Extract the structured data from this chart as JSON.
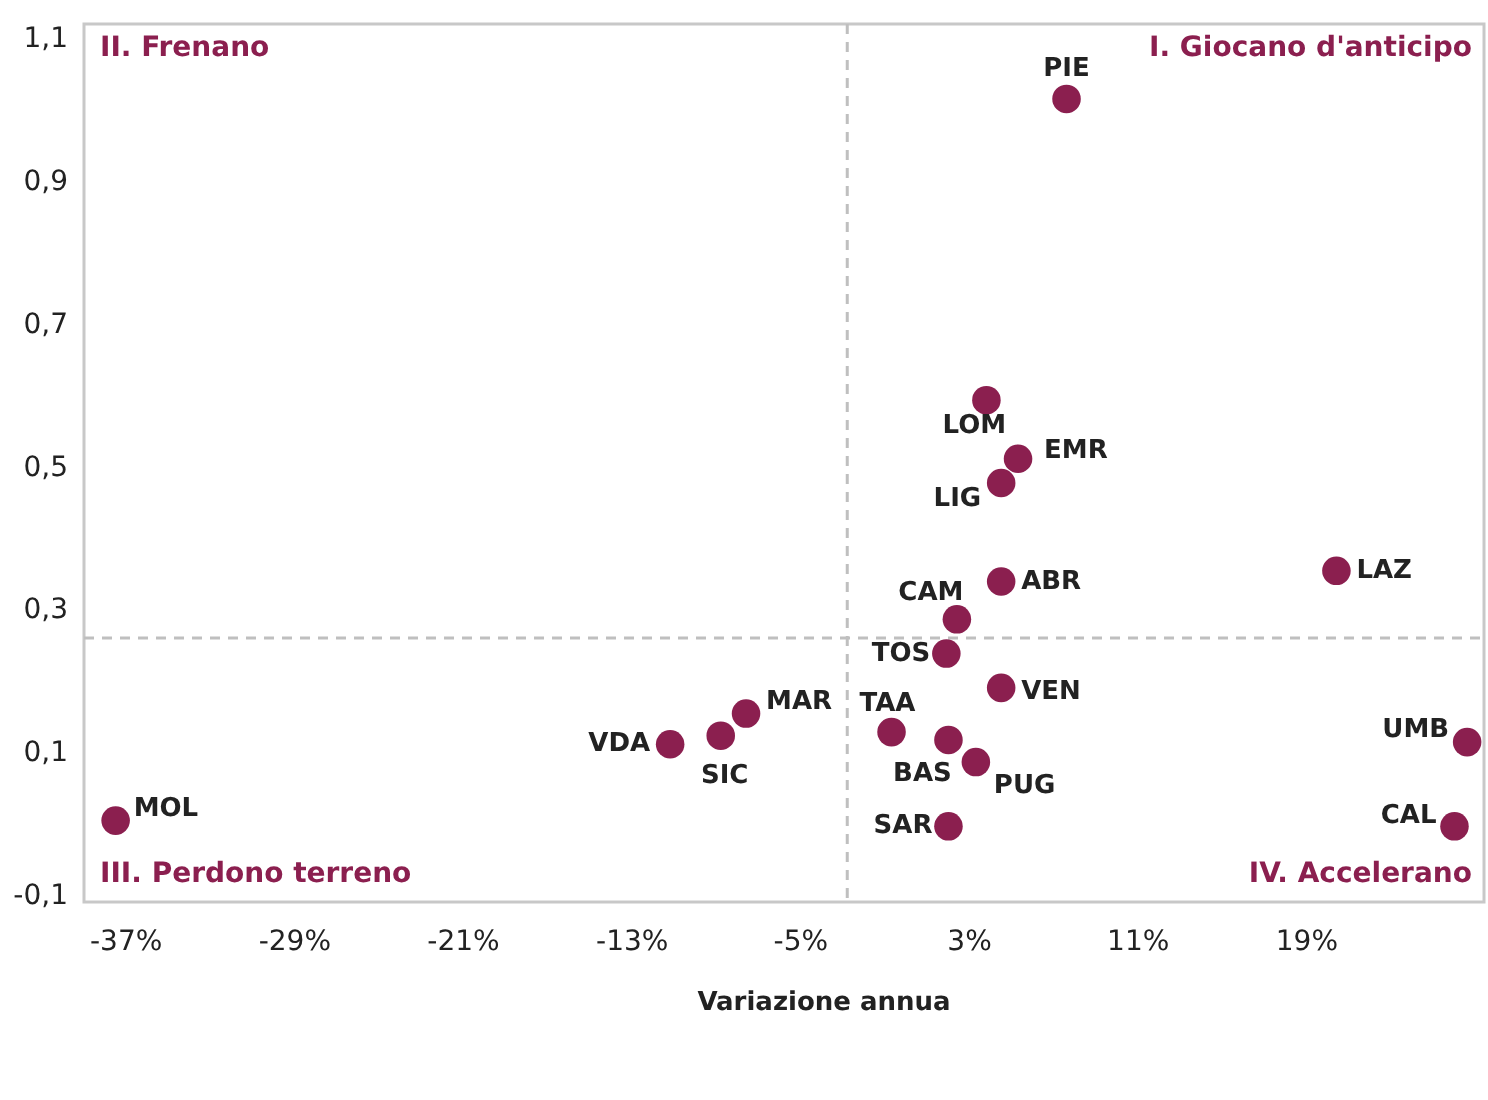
{
  "chart_data": {
    "type": "scatter",
    "xlabel": "Variazione annua",
    "series": [
      {
        "name": "PIE",
        "color": "#8b1f4f",
        "x": [
          7.6
        ],
        "values": [
          1.015
        ]
      },
      {
        "name": "LOM",
        "color": "#8b1f4f",
        "x": [
          3.8
        ],
        "values": [
          0.593
        ]
      },
      {
        "name": "EMR",
        "color": "#8b1f4f",
        "x": [
          5.3
        ],
        "values": [
          0.511
        ]
      },
      {
        "name": "LIG",
        "color": "#8b1f4f",
        "x": [
          4.5
        ],
        "values": [
          0.477
        ]
      },
      {
        "name": "ABR",
        "color": "#8b1f4f",
        "x": [
          4.5
        ],
        "values": [
          0.339
        ]
      },
      {
        "name": "CAM",
        "color": "#8b1f4f",
        "x": [
          2.4
        ],
        "values": [
          0.286
        ]
      },
      {
        "name": "TOS",
        "color": "#8b1f4f",
        "x": [
          1.9
        ],
        "values": [
          0.238
        ]
      },
      {
        "name": "VEN",
        "color": "#8b1f4f",
        "x": [
          4.5
        ],
        "values": [
          0.19
        ]
      },
      {
        "name": "TAA",
        "color": "#8b1f4f",
        "x": [
          -0.7
        ],
        "values": [
          0.128
        ]
      },
      {
        "name": "BAS",
        "color": "#8b1f4f",
        "x": [
          2.0
        ],
        "values": [
          0.117
        ]
      },
      {
        "name": "PUG",
        "color": "#8b1f4f",
        "x": [
          3.3
        ],
        "values": [
          0.086
        ]
      },
      {
        "name": "SAR",
        "color": "#8b1f4f",
        "x": [
          2.0
        ],
        "values": [
          -0.004
        ]
      },
      {
        "name": "MAR",
        "color": "#8b1f4f",
        "x": [
          -7.6
        ],
        "values": [
          0.154
        ]
      },
      {
        "name": "SIC",
        "color": "#8b1f4f",
        "x": [
          -8.8
        ],
        "values": [
          0.123
        ]
      },
      {
        "name": "VDA",
        "color": "#8b1f4f",
        "x": [
          -11.2
        ],
        "values": [
          0.111
        ]
      },
      {
        "name": "MOL",
        "color": "#8b1f4f",
        "x": [
          -37.5
        ],
        "values": [
          0.004
        ]
      },
      {
        "name": "LAZ",
        "color": "#8b1f4f",
        "x": [
          20.4
        ],
        "values": [
          0.354
        ]
      },
      {
        "name": "UMB",
        "color": "#8b1f4f",
        "x": [
          26.6
        ],
        "values": [
          0.114
        ]
      },
      {
        "name": "CAL",
        "color": "#8b1f4f",
        "x": [
          26.0
        ],
        "values": [
          -0.004
        ]
      }
    ],
    "marker": "circle",
    "grid": false,
    "xlim": [
      -39,
      27.4
    ],
    "ylim": [
      -0.11,
      1.12
    ],
    "xticks": [
      {
        "value": -37,
        "label": "-37%"
      },
      {
        "value": -29,
        "label": "-29%"
      },
      {
        "value": -21,
        "label": "-21%"
      },
      {
        "value": -13,
        "label": "-13%"
      },
      {
        "value": -5,
        "label": "-5%"
      },
      {
        "value": 3,
        "label": "3%"
      },
      {
        "value": 11,
        "label": "11%"
      },
      {
        "value": 19,
        "label": "19%"
      }
    ],
    "yticks": [
      {
        "value": -0.1,
        "label": "-0,1"
      },
      {
        "value": 0.1,
        "label": "0,1"
      },
      {
        "value": 0.3,
        "label": "0,3"
      },
      {
        "value": 0.5,
        "label": "0,5"
      },
      {
        "value": 0.7,
        "label": "0,7"
      },
      {
        "value": 0.9,
        "label": "0,9"
      },
      {
        "value": 1.1,
        "label": "1,1"
      }
    ],
    "ref_lines": [
      {
        "axis": "x",
        "value": -2.8,
        "color": "#bfbfbf",
        "line_style": "dashed"
      },
      {
        "axis": "y",
        "value": 0.26,
        "color": "#bfbfbf",
        "line_style": "dashed"
      }
    ],
    "annotations": [
      "I. Giocano d'anticipo",
      "II. Frenano",
      "III. Perdono terreno",
      "IV. Accelerano"
    ]
  }
}
